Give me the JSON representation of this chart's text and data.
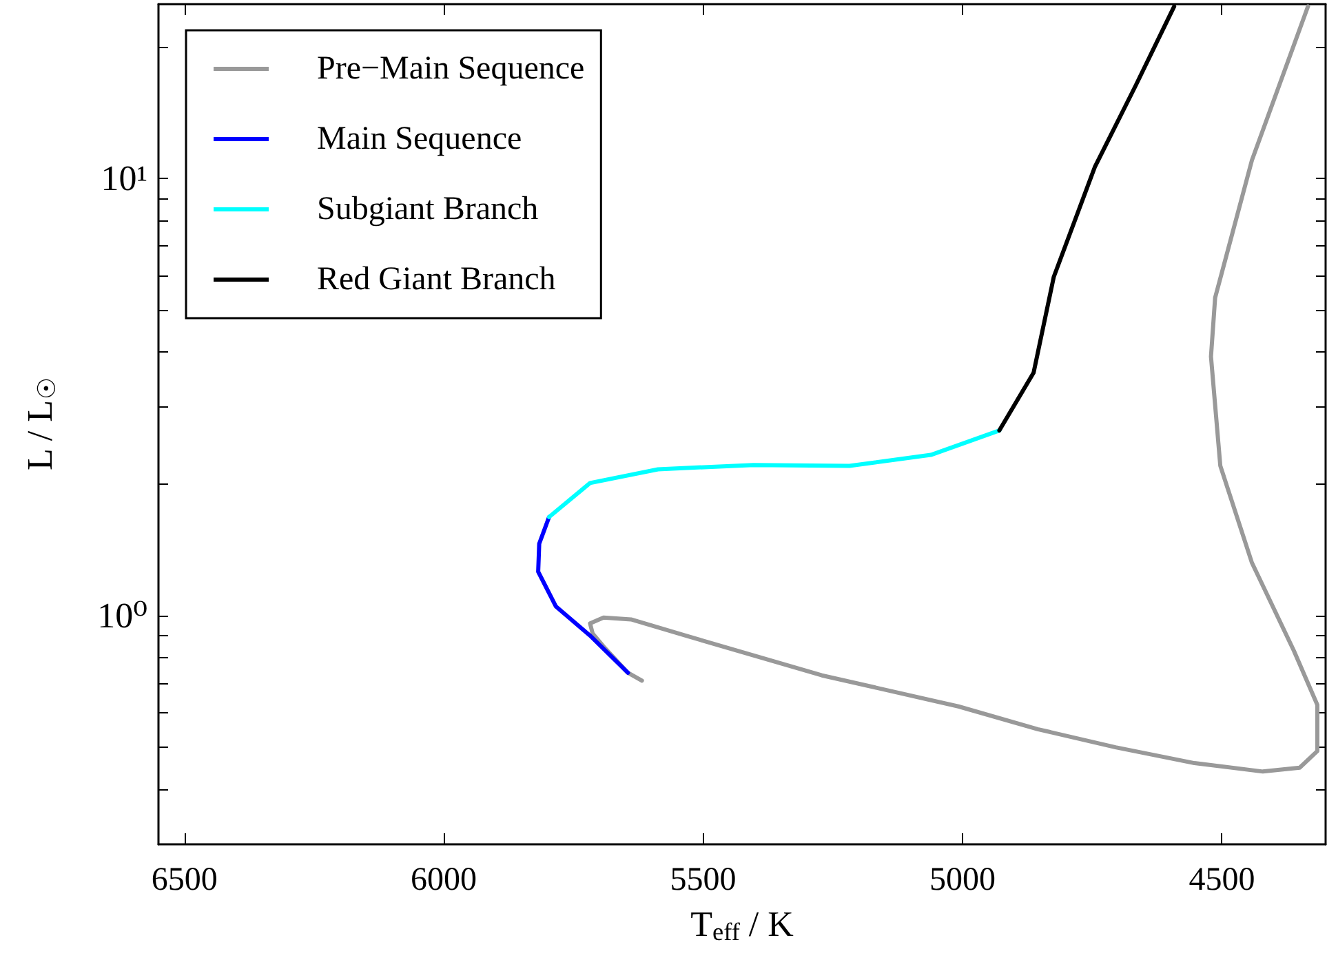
{
  "chart_data": {
    "type": "line",
    "xlabel": "T$_{eff}$ / K",
    "ylabel": "L / L$_{☉}$",
    "log": "y",
    "grid": false,
    "legend": "top left",
    "marker": "none",
    "line_style": "solid",
    "xlim": [
      6550,
      4300
    ],
    "xticks": [
      6500,
      6000,
      5500,
      5000,
      4500
    ],
    "ylim": [
      0.3,
      25
    ],
    "yticks": [
      {
        "value": 0.4,
        "label": null
      },
      {
        "value": 0.5,
        "label": null
      },
      {
        "value": 0.6,
        "label": null
      },
      {
        "value": 0.7,
        "label": null
      },
      {
        "value": 0.8,
        "label": null
      },
      {
        "value": 0.9,
        "label": null
      },
      {
        "value": 1,
        "label": "10⁰"
      },
      {
        "value": 2,
        "label": null
      },
      {
        "value": 3,
        "label": null
      },
      {
        "value": 4,
        "label": null
      },
      {
        "value": 5,
        "label": null
      },
      {
        "value": 6,
        "label": null
      },
      {
        "value": 7,
        "label": null
      },
      {
        "value": 8,
        "label": null
      },
      {
        "value": 9,
        "label": null
      },
      {
        "value": 10,
        "label": "10¹"
      },
      {
        "value": 20,
        "label": null
      }
    ],
    "series": [
      {
        "name": "Pre−Main Sequence",
        "color": "#999999",
        "x": [
          4334,
          4442,
          4513,
          4521,
          4503,
          4442,
          4361,
          4316,
          4316,
          4350,
          4421,
          4553,
          4705,
          4855,
          5008,
          5271,
          5534,
          5639,
          5692,
          5718,
          5713,
          5692,
          5645,
          5618
        ],
        "values": [
          24.7,
          11.0,
          5.33,
          3.91,
          2.2,
          1.32,
          0.83,
          0.625,
          0.49,
          0.449,
          0.44,
          0.46,
          0.5,
          0.55,
          0.62,
          0.73,
          0.9,
          0.98,
          0.99,
          0.96,
          0.91,
          0.85,
          0.74,
          0.71
        ]
      },
      {
        "name": "Main Sequence",
        "color": "#0000ff",
        "x": [
          5645,
          5718,
          5784,
          5818,
          5816,
          5797
        ],
        "values": [
          0.74,
          0.9,
          1.05,
          1.26,
          1.46,
          1.68
        ]
      },
      {
        "name": "Subgiant Branch",
        "color": "#00ffff",
        "x": [
          5797,
          5718,
          5587,
          5403,
          5218,
          5061,
          4929
        ],
        "values": [
          1.68,
          2.01,
          2.16,
          2.21,
          2.2,
          2.33,
          2.65
        ]
      },
      {
        "name": "Red Giant Branch",
        "color": "#000000",
        "x": [
          4929,
          4863,
          4824,
          4745,
          4666,
          4592
        ],
        "values": [
          2.65,
          3.59,
          5.95,
          10.6,
          16.3,
          24.7
        ]
      }
    ]
  }
}
